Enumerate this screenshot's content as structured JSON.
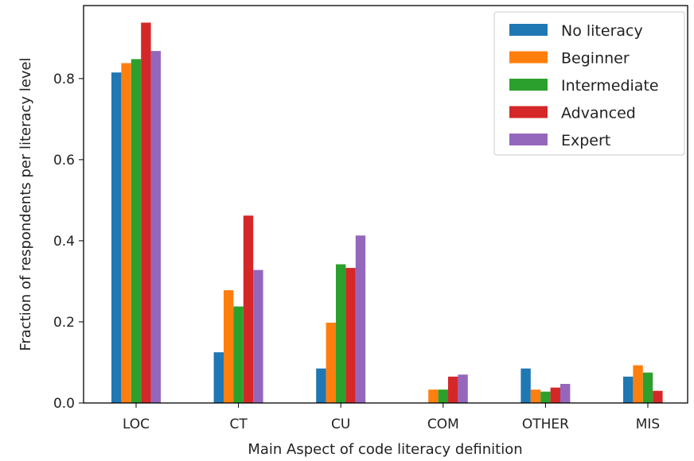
{
  "chart_data": {
    "type": "bar",
    "title": "",
    "xlabel": "Main Aspect of code literacy definition",
    "ylabel": "Fraction of respondents per literacy level",
    "categories": [
      "LOC",
      "CT",
      "CU",
      "COM",
      "OTHER",
      "MIS"
    ],
    "ylim": [
      0,
      0.98
    ],
    "yticks": [
      "0.0",
      "0.2",
      "0.4",
      "0.6",
      "0.8"
    ],
    "grid": false,
    "legend_position": "top-right",
    "series": [
      {
        "name": "No literacy",
        "color": "#1f77b4",
        "values": [
          0.815,
          0.125,
          0.085,
          0.0,
          0.085,
          0.065
        ]
      },
      {
        "name": "Beginner",
        "color": "#ff7f0e",
        "values": [
          0.838,
          0.278,
          0.198,
          0.033,
          0.033,
          0.093
        ]
      },
      {
        "name": "Intermediate",
        "color": "#2ca02c",
        "values": [
          0.848,
          0.238,
          0.342,
          0.033,
          0.028,
          0.075
        ]
      },
      {
        "name": "Advanced",
        "color": "#d62728",
        "values": [
          0.938,
          0.462,
          0.333,
          0.065,
          0.038,
          0.03
        ]
      },
      {
        "name": "Expert",
        "color": "#9467bd",
        "values": [
          0.868,
          0.328,
          0.413,
          0.07,
          0.047,
          0.0
        ]
      }
    ]
  }
}
